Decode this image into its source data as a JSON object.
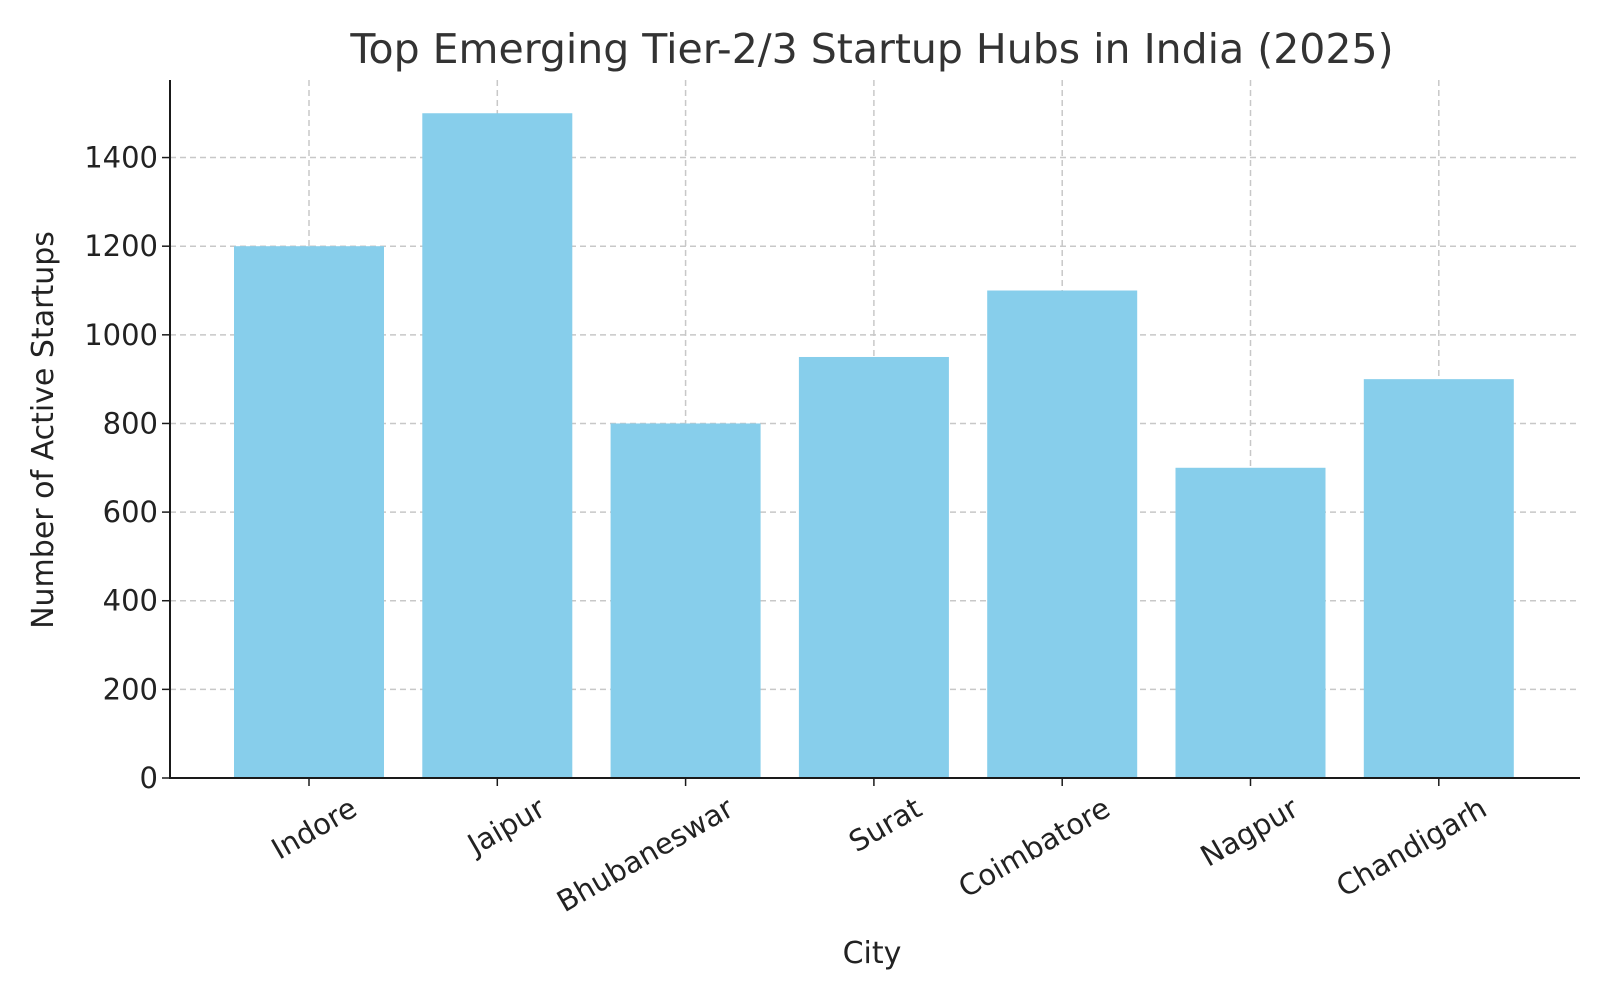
{
  "chart_data": {
    "type": "bar",
    "title": "Top Emerging Tier-2/3 Startup Hubs in India (2025)",
    "xlabel": "City",
    "ylabel": "Number of Active Startups",
    "categories": [
      "Indore",
      "Jaipur",
      "Bhubaneswar",
      "Surat",
      "Coimbatore",
      "Nagpur",
      "Chandigarh"
    ],
    "values": [
      1200,
      1500,
      800,
      950,
      1100,
      700,
      900
    ],
    "ylim": [
      0,
      1575
    ],
    "yticks": [
      0,
      200,
      400,
      600,
      800,
      1000,
      1200,
      1400
    ],
    "grid": true,
    "bar_color": "#87CEEB",
    "xtick_rotation": "30°"
  }
}
